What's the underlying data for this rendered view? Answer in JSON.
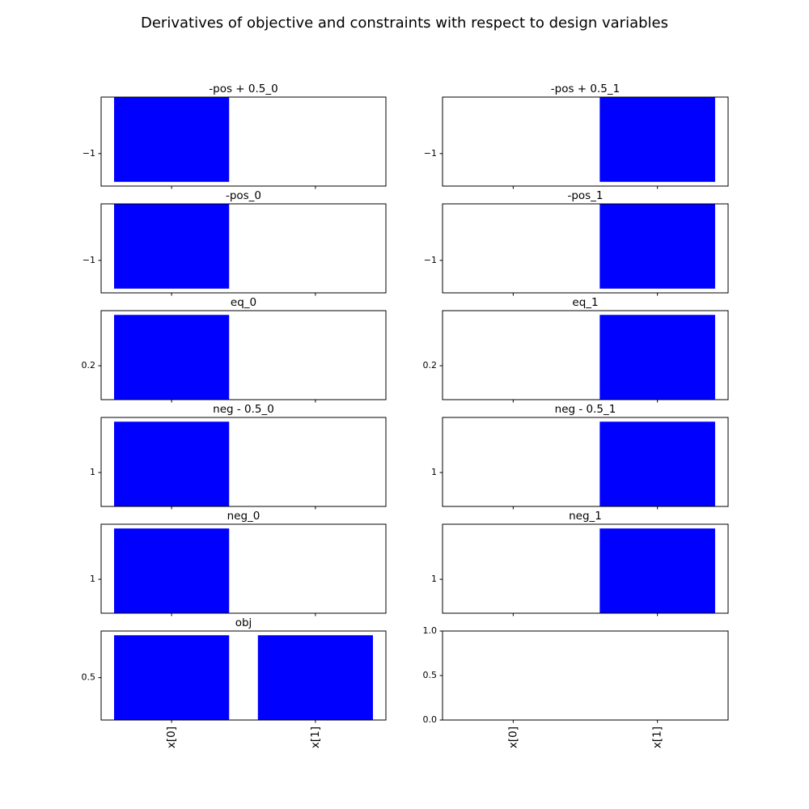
{
  "title": "Derivatives of objective and constraints with respect to design variables",
  "chart_data": [
    {
      "type": "bar",
      "title": "-pos + 0.5_0",
      "categories": [
        "x[0]",
        "x[1]"
      ],
      "values": [
        -1.5,
        0
      ],
      "color": "#0000ff",
      "ylim": [
        -1.575,
        0
      ],
      "yticks": [
        {
          "value": -1,
          "label": "−1"
        }
      ],
      "xticklabels": false
    },
    {
      "type": "bar",
      "title": "-pos + 0.5_1",
      "categories": [
        "x[0]",
        "x[1]"
      ],
      "values": [
        0,
        -1.5
      ],
      "color": "#0000ff",
      "ylim": [
        -1.575,
        0
      ],
      "yticks": [
        {
          "value": -1,
          "label": "−1"
        }
      ],
      "xticklabels": false
    },
    {
      "type": "bar",
      "title": "-pos_0",
      "categories": [
        "x[0]",
        "x[1]"
      ],
      "values": [
        -1.5,
        0
      ],
      "color": "#0000ff",
      "ylim": [
        -1.575,
        0
      ],
      "yticks": [
        {
          "value": -1,
          "label": "−1"
        }
      ],
      "xticklabels": false
    },
    {
      "type": "bar",
      "title": "-pos_1",
      "categories": [
        "x[0]",
        "x[1]"
      ],
      "values": [
        0,
        -1.5
      ],
      "color": "#0000ff",
      "ylim": [
        -1.575,
        0
      ],
      "yticks": [
        {
          "value": -1,
          "label": "−1"
        }
      ],
      "xticklabels": false
    },
    {
      "type": "bar",
      "title": "eq_0",
      "categories": [
        "x[0]",
        "x[1]"
      ],
      "values": [
        0.5,
        0
      ],
      "color": "#0000ff",
      "ylim": [
        0,
        0.525
      ],
      "yticks": [
        0.2
      ],
      "xticklabels": false
    },
    {
      "type": "bar",
      "title": "eq_1",
      "categories": [
        "x[0]",
        "x[1]"
      ],
      "values": [
        0,
        0.5
      ],
      "color": "#0000ff",
      "ylim": [
        0,
        0.525
      ],
      "yticks": [
        0.2
      ],
      "xticklabels": false
    },
    {
      "type": "bar",
      "title": "neg - 0.5_0",
      "categories": [
        "x[0]",
        "x[1]"
      ],
      "values": [
        2.5,
        0
      ],
      "color": "#0000ff",
      "ylim": [
        0,
        2.625
      ],
      "yticks": [
        1
      ],
      "xticklabels": false
    },
    {
      "type": "bar",
      "title": "neg - 0.5_1",
      "categories": [
        "x[0]",
        "x[1]"
      ],
      "values": [
        0,
        2.5
      ],
      "color": "#0000ff",
      "ylim": [
        0,
        2.625
      ],
      "yticks": [
        1
      ],
      "xticklabels": false
    },
    {
      "type": "bar",
      "title": "neg_0",
      "categories": [
        "x[0]",
        "x[1]"
      ],
      "values": [
        2.5,
        0
      ],
      "color": "#0000ff",
      "ylim": [
        0,
        2.625
      ],
      "yticks": [
        1
      ],
      "xticklabels": false
    },
    {
      "type": "bar",
      "title": "neg_1",
      "categories": [
        "x[0]",
        "x[1]"
      ],
      "values": [
        0,
        2.5
      ],
      "color": "#0000ff",
      "ylim": [
        0,
        2.625
      ],
      "yticks": [
        1
      ],
      "xticklabels": false
    },
    {
      "type": "bar",
      "title": "obj",
      "categories": [
        "x[0]",
        "x[1]"
      ],
      "values": [
        1,
        1
      ],
      "color": "#0000ff",
      "ylim": [
        0,
        1.05
      ],
      "yticks": [
        0.5
      ],
      "xticklabels": true
    },
    {
      "type": "bar",
      "categories": [
        "x[0]",
        "x[1]"
      ],
      "ylim": [
        0,
        1
      ],
      "yticks": [
        {
          "value": 0,
          "label": "0.0"
        },
        0.5,
        {
          "value": 1,
          "label": "1.0"
        }
      ],
      "xticklabels": true
    }
  ]
}
